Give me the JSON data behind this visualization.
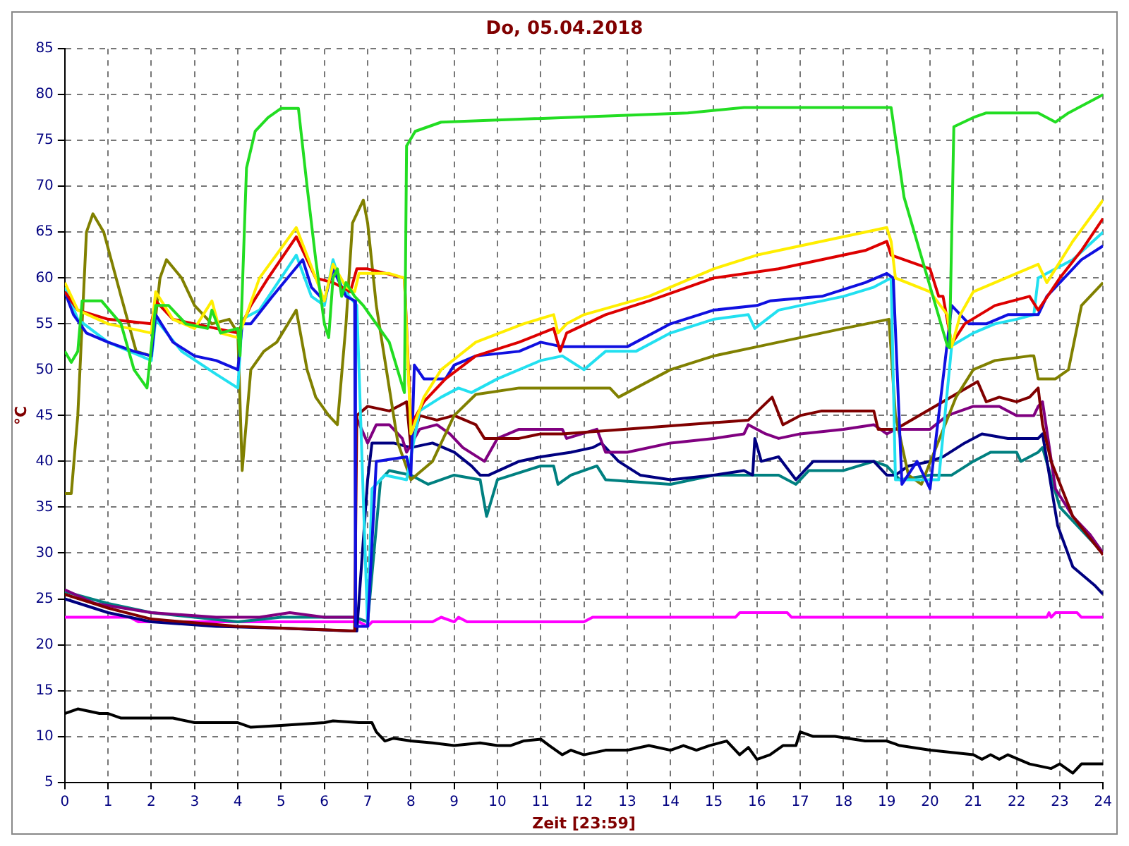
{
  "chart_data": {
    "type": "line",
    "title": "Do, 05.04.2018",
    "xlabel": "Zeit [23:59]",
    "ylabel": "°C",
    "xlim": [
      0,
      24
    ],
    "xticks": [
      0,
      1,
      2,
      3,
      4,
      5,
      6,
      7,
      8,
      9,
      10,
      11,
      12,
      13,
      14,
      15,
      16,
      17,
      18,
      19,
      20,
      21,
      22,
      23,
      24
    ],
    "ylim": [
      5,
      85
    ],
    "yticks": [
      5,
      10,
      15,
      20,
      25,
      30,
      35,
      40,
      45,
      50,
      55,
      60,
      65,
      70,
      75,
      80,
      85
    ],
    "grid": true,
    "legend": false,
    "marker": "none",
    "line_style": "solid",
    "series": [
      {
        "color": "#22dd22",
        "x": [
          0,
          0.15,
          0.3,
          0.4,
          0.85,
          1.3,
          1.6,
          1.9,
          2.1,
          2.4,
          2.8,
          3.3,
          3.4,
          3.6,
          4.0,
          4.05,
          4.2,
          4.4,
          4.7,
          5.0,
          5.4,
          5.6,
          5.8,
          6.0,
          6.1,
          6.2,
          6.3,
          6.4,
          6.5,
          6.7,
          6.9,
          7.5,
          7.85,
          7.9,
          8.1,
          8.7,
          14.4,
          15.7,
          19.1,
          19.4,
          20.4,
          20.45,
          20.55,
          21,
          21.3,
          22.5,
          22.9,
          23.2,
          23.8,
          24
        ],
        "values": [
          52,
          50.8,
          52,
          57.5,
          57.5,
          55,
          50,
          48,
          57,
          57,
          55,
          54.5,
          56.5,
          54,
          54.5,
          51.5,
          72,
          76,
          77.5,
          78.5,
          78.5,
          70,
          62,
          55,
          53.5,
          60,
          61,
          58,
          59.5,
          58,
          57,
          53,
          47.5,
          74.4,
          76,
          77,
          78,
          78.6,
          78.6,
          68.8,
          52.6,
          52.4,
          76.5,
          77.5,
          78,
          78,
          77,
          78,
          79.5,
          80
        ]
      },
      {
        "color": "#ffee00",
        "x": [
          0,
          0.3,
          1,
          2,
          2.1,
          2.5,
          3,
          3.4,
          3.6,
          4.0,
          4.2,
          4.5,
          5.35,
          5.8,
          6.0,
          6.2,
          6.5,
          6.7,
          6.8,
          7.5,
          7.85,
          8.0,
          8.3,
          8.7,
          9.5,
          10.6,
          11.3,
          11.4,
          11.6,
          12,
          13.5,
          15,
          16,
          16.5,
          17.5,
          19.0,
          19.1,
          19.2,
          20.0,
          20.4,
          20.5,
          20.7,
          21,
          22.5,
          22.7,
          23.3,
          24
        ],
        "values": [
          59.5,
          56.5,
          55,
          54,
          58.5,
          55.5,
          54.5,
          57.5,
          54,
          53.5,
          56,
          60,
          65.5,
          60,
          57.5,
          61.5,
          59,
          58.5,
          60.5,
          60.5,
          60,
          43,
          47,
          50,
          53,
          55,
          56,
          54,
          55,
          56,
          58,
          61,
          62.5,
          63,
          64,
          65.5,
          64,
          60,
          58.5,
          56,
          52.5,
          56,
          58.5,
          61.5,
          59.5,
          64,
          68.5
        ]
      },
      {
        "color": "#dd0000",
        "x": [
          0,
          0.3,
          1,
          2,
          2.1,
          2.5,
          3,
          3.5,
          4.0,
          4.3,
          4.7,
          5.35,
          5.8,
          6.2,
          6.6,
          6.75,
          7,
          7.85,
          8.0,
          8.3,
          8.8,
          9.5,
          10.5,
          11.3,
          11.45,
          11.6,
          12.5,
          13.5,
          15,
          16.5,
          17.5,
          18.5,
          19.0,
          19.1,
          20.0,
          20.2,
          20.3,
          20.5,
          20.8,
          21.5,
          22.3,
          22.5,
          23,
          23.5,
          24
        ],
        "values": [
          58.5,
          56.5,
          55.5,
          55,
          57.5,
          55.5,
          55,
          54.5,
          54,
          57,
          60,
          64.5,
          60,
          59.5,
          58.5,
          61,
          61,
          60,
          44,
          46.5,
          49,
          51.5,
          53,
          54.5,
          52,
          54,
          56,
          57.5,
          60,
          61,
          62,
          63,
          64,
          62.5,
          61,
          58,
          58,
          52.8,
          55,
          57,
          58,
          56.5,
          60,
          63,
          66.5
        ]
      },
      {
        "color": "#1010e0",
        "x": [
          0,
          0.2,
          0.5,
          1,
          1.6,
          2.0,
          2.1,
          2.5,
          3,
          3.5,
          4.0,
          4.1,
          4.3,
          4.8,
          5.5,
          5.7,
          6.0,
          6.2,
          6.5,
          6.7,
          6.72,
          7.0,
          7.2,
          7.9,
          8.0,
          8.08,
          8.3,
          8.8,
          9.0,
          9.5,
          10.5,
          11.0,
          11.5,
          13,
          14,
          15,
          16,
          16.3,
          17.5,
          18.5,
          19.0,
          19.15,
          19.35,
          19.7,
          20.0,
          20.5,
          20.9,
          21.3,
          21.8,
          22.5,
          22.7,
          23.5,
          24
        ],
        "values": [
          58.5,
          56,
          54,
          53,
          52,
          51.5,
          56,
          53,
          51.5,
          51,
          50,
          55,
          55,
          58,
          62,
          59,
          57.5,
          61,
          58,
          57.5,
          22,
          22,
          40,
          40.5,
          38.5,
          50.5,
          49,
          49,
          50.5,
          51.5,
          52,
          53,
          52.5,
          52.5,
          55,
          56.5,
          57,
          57.5,
          58,
          59.5,
          60.5,
          60,
          37.5,
          40,
          37,
          57,
          55,
          55,
          56,
          56,
          58,
          62,
          63.5
        ]
      },
      {
        "color": "#22e0f0",
        "x": [
          0,
          0.3,
          1,
          2,
          2.1,
          2.7,
          3.5,
          4.0,
          4.1,
          4.5,
          5.35,
          5.7,
          6.0,
          6.2,
          6.4,
          6.75,
          7.0,
          7.1,
          7.4,
          7.9,
          8.2,
          8.7,
          9.1,
          9.4,
          10,
          11,
          11.5,
          12,
          12.5,
          13.2,
          14,
          15,
          15.8,
          15.95,
          16.5,
          17.0,
          18,
          18.7,
          19.1,
          19.2,
          20.2,
          20.5,
          21,
          21.5,
          22,
          22.4,
          22.5,
          23.3,
          24
        ],
        "values": [
          59,
          55.5,
          53,
          51,
          55.5,
          52,
          49.5,
          48,
          55.5,
          56.5,
          62.5,
          58,
          57,
          62,
          59,
          57,
          22,
          37,
          38.5,
          38,
          45.5,
          47,
          48,
          47.5,
          49,
          51,
          51.5,
          50,
          52,
          52,
          54,
          55.5,
          56,
          54.5,
          56.5,
          57,
          58,
          59,
          60,
          38,
          38,
          52.6,
          54,
          55,
          55.5,
          56,
          60,
          62,
          65
        ]
      },
      {
        "color": "#808000",
        "x": [
          0,
          0.15,
          0.3,
          0.5,
          0.65,
          0.9,
          1.3,
          1.65,
          2.0,
          2.2,
          2.35,
          2.7,
          3.0,
          3.4,
          3.8,
          4.0,
          4.1,
          4.3,
          4.6,
          4.9,
          5.35,
          5.6,
          5.8,
          6.1,
          6.3,
          6.5,
          6.65,
          6.9,
          7.0,
          7.2,
          7.5,
          7.7,
          8.0,
          8.5,
          9.0,
          9.5,
          10.5,
          12.6,
          12.8,
          13.2,
          14,
          15,
          16,
          17,
          18,
          19.05,
          19.2,
          19.5,
          19.8,
          20.6,
          21,
          21.5,
          22.3,
          22.4,
          22.5,
          22.9,
          23.2,
          23.5,
          24
        ],
        "values": [
          36.5,
          36.5,
          45,
          65,
          67,
          65,
          58,
          52,
          51.5,
          60,
          62,
          60,
          57,
          55,
          55.5,
          54,
          39,
          50,
          52,
          53,
          56.5,
          50,
          47,
          45,
          44,
          55,
          66,
          68.5,
          66,
          57,
          48,
          42,
          38,
          40,
          45,
          47.3,
          48,
          48,
          47,
          48,
          50,
          51.5,
          52.5,
          53.5,
          54.5,
          55.5,
          45,
          38.5,
          37.5,
          47,
          50,
          51,
          51.5,
          51.5,
          49,
          49,
          50,
          57,
          59.5
        ]
      },
      {
        "color": "#800000",
        "x": [
          0,
          1,
          2,
          4,
          6.7,
          6.75,
          7.0,
          7.5,
          7.9,
          8.0,
          8.2,
          8.6,
          9.0,
          9.5,
          9.7,
          10.5,
          11.0,
          11.5,
          15.8,
          16.35,
          16.6,
          17.0,
          17.5,
          18.7,
          18.8,
          19.2,
          21.1,
          21.3,
          21.6,
          22,
          22.3,
          22.5,
          22.6,
          22.8,
          23.3,
          24
        ],
        "values": [
          25.5,
          24,
          22.8,
          22,
          21.5,
          45,
          46,
          45.5,
          46.5,
          41.5,
          45,
          44.5,
          45,
          44,
          42.5,
          42.5,
          43,
          43,
          44.5,
          47,
          44,
          45,
          45.5,
          45.5,
          43.5,
          43.5,
          48.7,
          46.5,
          47,
          46.5,
          47,
          48,
          44,
          40,
          34,
          29.8
        ]
      },
      {
        "color": "#800080",
        "x": [
          0,
          0.7,
          2,
          3.5,
          4.5,
          5.2,
          6.0,
          6.7,
          6.72,
          7.0,
          7.2,
          7.5,
          7.8,
          7.9,
          8.2,
          8.6,
          8.9,
          9.2,
          9.7,
          10.0,
          10.5,
          11.5,
          11.6,
          12.3,
          12.5,
          13,
          14,
          15,
          15.7,
          15.8,
          16.2,
          16.5,
          17,
          18,
          18.7,
          19.0,
          19.2,
          20.0,
          20.4,
          21,
          21.6,
          22,
          22.4,
          22.5,
          22.6,
          22.9,
          23.3,
          23.7,
          24
        ],
        "values": [
          26,
          24.5,
          23.5,
          23,
          23,
          23.5,
          23,
          23,
          45,
          42,
          44,
          44,
          42.5,
          41,
          43.5,
          44,
          43,
          41.5,
          40,
          42.5,
          43.5,
          43.5,
          42.5,
          43.5,
          41,
          41,
          42,
          42.5,
          43,
          44,
          43,
          42.5,
          43,
          43.5,
          44,
          43,
          43.5,
          43.5,
          45,
          46,
          46,
          45,
          45,
          46,
          46.5,
          37,
          34,
          32,
          30
        ]
      },
      {
        "color": "#000080",
        "x": [
          0,
          1,
          2,
          3.5,
          5,
          6.6,
          6.75,
          7.0,
          7.1,
          7.6,
          8.0,
          8.5,
          9.0,
          9.4,
          9.6,
          9.8,
          10.5,
          11,
          11.7,
          12.2,
          12.4,
          12.8,
          13.3,
          14,
          15,
          15.7,
          15.9,
          15.95,
          16.1,
          16.5,
          16.9,
          17.3,
          18,
          18.7,
          19.0,
          19.2,
          19.5,
          20,
          20.3,
          20.8,
          21.2,
          21.8,
          22.5,
          22.6,
          22.95,
          23.3,
          23.8,
          24
        ],
        "values": [
          25,
          23.5,
          22.5,
          22,
          21.8,
          21.5,
          21.5,
          38,
          42,
          42,
          41.5,
          42,
          41,
          39.5,
          38.5,
          38.5,
          40,
          40.5,
          41,
          41.5,
          42,
          40,
          38.5,
          38,
          38.5,
          39,
          38.5,
          42.5,
          40,
          40.5,
          38,
          40,
          40,
          40,
          38.5,
          38.5,
          39.5,
          40,
          40.5,
          42,
          43,
          42.5,
          42.5,
          43,
          33,
          28.5,
          26.5,
          25.5
        ]
      },
      {
        "color": "#008080",
        "x": [
          0,
          1,
          2,
          3,
          4,
          5,
          6.7,
          7.0,
          7.3,
          7.5,
          8.0,
          8.4,
          9.0,
          9.6,
          9.75,
          10.0,
          11,
          11.3,
          11.4,
          11.7,
          12.3,
          12.5,
          14,
          15,
          16,
          16.5,
          16.9,
          17.2,
          18,
          18.7,
          19.0,
          19.3,
          20.0,
          20.5,
          21,
          21.4,
          22,
          22.1,
          22.5,
          22.6,
          23.0,
          23.5,
          24
        ],
        "values": [
          25.8,
          24.5,
          23.5,
          23,
          22.5,
          23,
          23,
          22.5,
          38,
          39,
          38.5,
          37.5,
          38.5,
          38,
          34,
          38,
          39.5,
          39.5,
          37.5,
          38.5,
          39.5,
          38,
          37.5,
          38.5,
          38.5,
          38.5,
          37.5,
          39,
          39,
          40,
          39.5,
          38,
          38.5,
          38.5,
          40,
          41,
          41,
          40,
          41,
          41.5,
          35,
          32.5,
          30
        ]
      },
      {
        "color": "#ff00ff",
        "x": [
          0,
          1.5,
          1.7,
          6.8,
          7.0,
          7.1,
          8.5,
          8.7,
          9.0,
          9.1,
          9.3,
          12.0,
          12.2,
          15.5,
          15.6,
          16.7,
          16.8,
          22.7,
          22.75,
          22.8,
          22.9,
          23.4,
          23.5,
          24
        ],
        "values": [
          23,
          23,
          22.5,
          22.5,
          22,
          22.5,
          22.5,
          23,
          22.5,
          23,
          22.5,
          22.5,
          23,
          23,
          23.5,
          23.5,
          23,
          23,
          23.5,
          23,
          23.5,
          23.5,
          23,
          23
        ]
      },
      {
        "color": "#000000",
        "x": [
          0,
          0.3,
          0.8,
          1.0,
          1.3,
          2.5,
          3,
          4,
          4.3,
          5,
          6,
          6.2,
          6.8,
          7.1,
          7.2,
          7.4,
          7.6,
          8,
          8.5,
          9,
          9.6,
          10,
          10.3,
          10.6,
          11.0,
          11.2,
          11.5,
          11.7,
          12.0,
          12.5,
          13,
          13.5,
          14.0,
          14.3,
          14.6,
          14.9,
          15.3,
          15.6,
          15.8,
          16.0,
          16.3,
          16.6,
          16.9,
          17.0,
          17.3,
          17.8,
          18.5,
          19.0,
          19.3,
          20,
          21,
          21.2,
          21.4,
          21.6,
          21.8,
          22.3,
          22.8,
          23.0,
          23.3,
          23.5,
          24
        ],
        "values": [
          12.5,
          13,
          12.5,
          12.5,
          12,
          12,
          11.5,
          11.5,
          11,
          11.2,
          11.5,
          11.7,
          11.5,
          11.5,
          10.5,
          9.5,
          9.8,
          9.5,
          9.3,
          9,
          9.3,
          9,
          9,
          9.5,
          9.7,
          9,
          8,
          8.5,
          8,
          8.5,
          8.5,
          9,
          8.5,
          9,
          8.5,
          9,
          9.5,
          8,
          8.8,
          7.5,
          8,
          9,
          9,
          10.5,
          10,
          10,
          9.5,
          9.5,
          9,
          8.5,
          8,
          7.5,
          8,
          7.5,
          8,
          7,
          6.5,
          7,
          6,
          7,
          7
        ]
      }
    ]
  }
}
